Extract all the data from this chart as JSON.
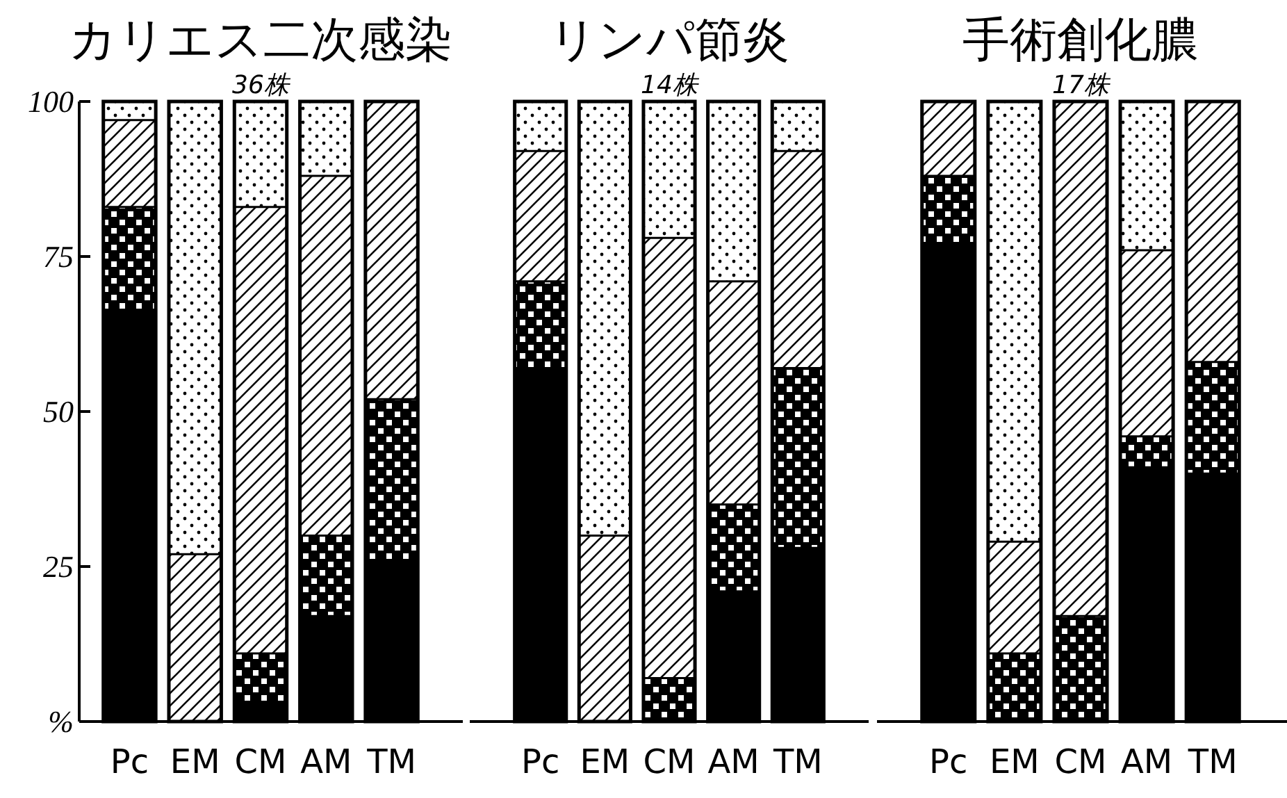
{
  "chart_data": [
    {
      "type": "bar",
      "stacked": true,
      "title": "カリエス二次感染",
      "subtitle": "36株",
      "categories": [
        "Pc",
        "EM",
        "CM",
        "AM",
        "TM"
      ],
      "ylim": [
        0,
        100
      ],
      "yticks": [
        {
          "value": 0,
          "label": "%"
        },
        25,
        50,
        75,
        100
      ],
      "grid": false,
      "legend": false,
      "series": [
        {
          "color": "#000000",
          "values": [
            66,
            0,
            3,
            17,
            26
          ]
        },
        {
          "color": "#000000",
          "values": [
            17,
            0,
            8,
            13,
            26
          ]
        },
        {
          "color": "#ffffff",
          "values": [
            14,
            27,
            72,
            58,
            48
          ]
        },
        {
          "color": "#ffffff",
          "values": [
            3,
            73,
            17,
            12,
            0
          ]
        }
      ]
    },
    {
      "type": "bar",
      "stacked": true,
      "title": "リンパ節炎",
      "subtitle": "14株",
      "categories": [
        "Pc",
        "EM",
        "CM",
        "AM",
        "TM"
      ],
      "ylim": [
        0,
        100
      ],
      "tick_labels": "x",
      "grid": false,
      "legend": false,
      "series": [
        {
          "color": "#000000",
          "values": [
            57,
            0,
            0,
            21,
            28
          ]
        },
        {
          "color": "#000000",
          "values": [
            14,
            0,
            7,
            14,
            29
          ]
        },
        {
          "color": "#ffffff",
          "values": [
            21,
            30,
            71,
            36,
            35
          ]
        },
        {
          "color": "#ffffff",
          "values": [
            8,
            70,
            22,
            29,
            8
          ]
        }
      ]
    },
    {
      "type": "bar",
      "stacked": true,
      "title": "手術創化膿",
      "subtitle": "17株",
      "categories": [
        "Pc",
        "EM",
        "CM",
        "AM",
        "TM"
      ],
      "ylim": [
        0,
        100
      ],
      "tick_labels": "x",
      "grid": false,
      "legend": false,
      "series": [
        {
          "color": "#000000",
          "values": [
            77,
            0,
            0,
            41,
            40
          ]
        },
        {
          "color": "#000000",
          "values": [
            11,
            11,
            17,
            5,
            18
          ]
        },
        {
          "color": "#ffffff",
          "values": [
            12,
            18,
            83,
            30,
            42
          ]
        },
        {
          "color": "#ffffff",
          "values": [
            0,
            71,
            0,
            24,
            0
          ]
        }
      ]
    }
  ]
}
